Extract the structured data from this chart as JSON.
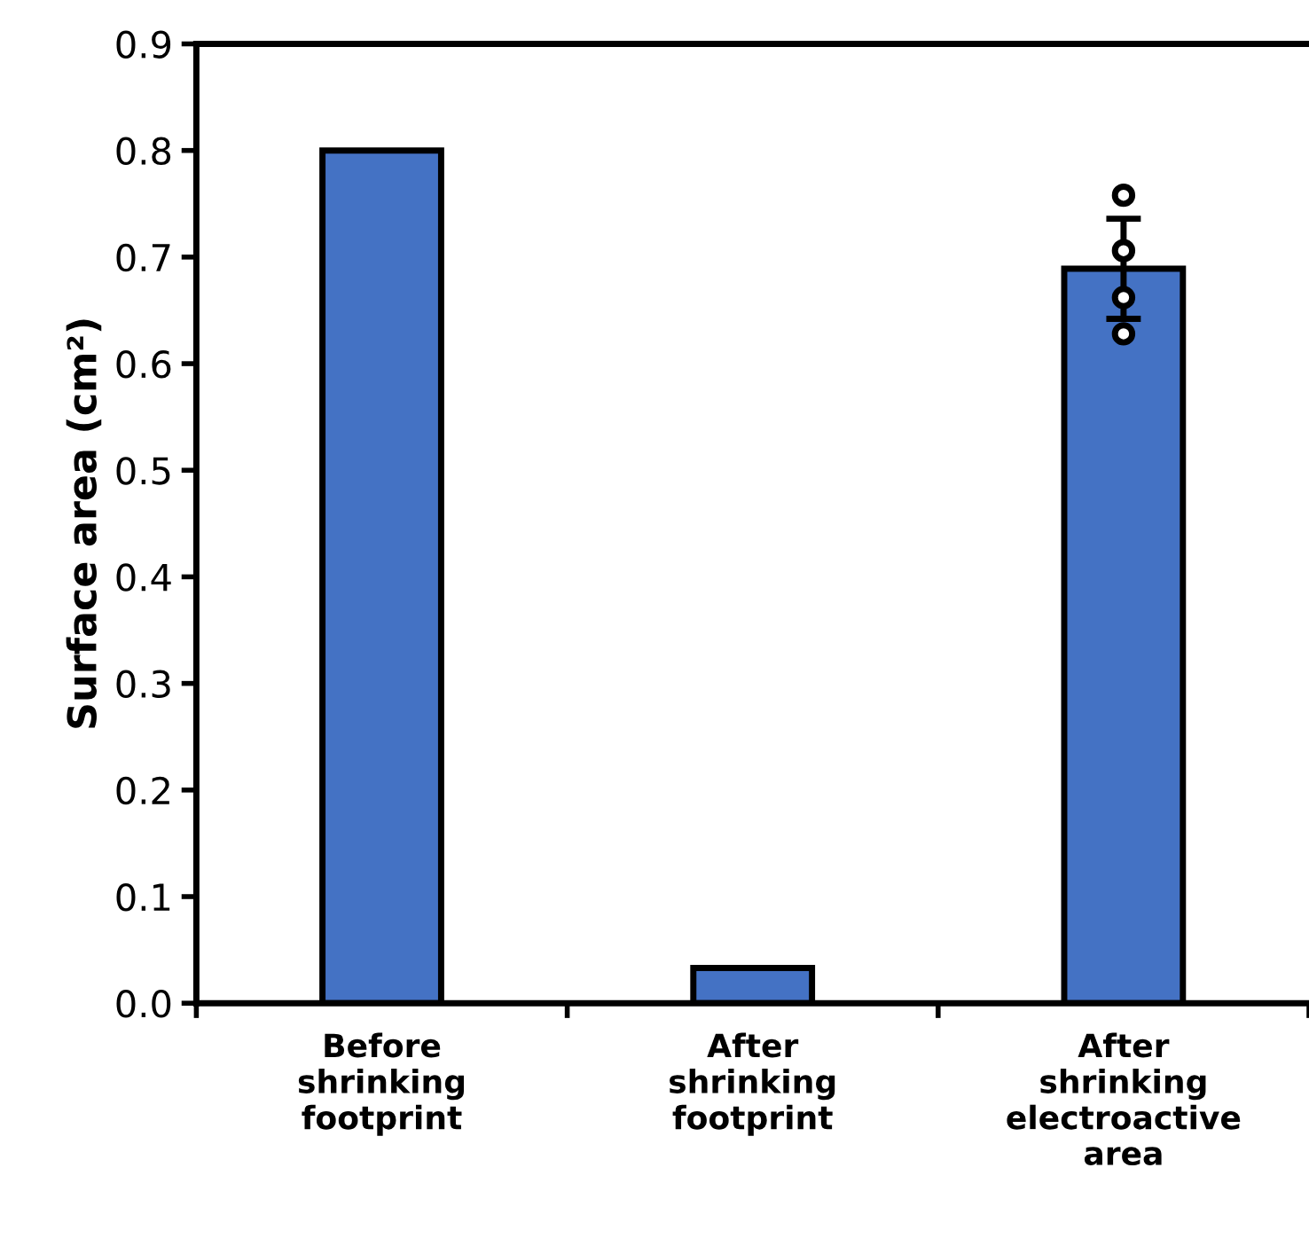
{
  "chart_data": {
    "type": "bar",
    "ylabel": "Surface area (cm²)",
    "categories": [
      "Before\nshrinking\nfootprint",
      "After\nshrinking\nfootprint",
      "After\nshrinking\nelectroactive\narea"
    ],
    "series": [
      {
        "color": "#4472c4",
        "values": [
          0.8,
          0.033,
          0.689
        ],
        "errors": [
          null,
          null,
          0.047
        ]
      },
      {
        "type": "scatter",
        "color": "#000000",
        "x": [
          "After\nshrinking\nelectroactive\narea",
          "After\nshrinking\nelectroactive\narea",
          "After\nshrinking\nelectroactive\narea",
          "After\nshrinking\nelectroactive\narea"
        ],
        "values": [
          0.758,
          0.706,
          0.662,
          0.628
        ],
        "marker": "circle"
      }
    ],
    "ylim": [
      0,
      0.9
    ],
    "yticks": [
      {
        "value": 0,
        "label": "0.0"
      },
      0.1,
      0.2,
      0.3,
      0.4,
      0.5,
      0.6,
      0.7,
      0.8,
      0.9
    ],
    "grid": false,
    "legend": false
  }
}
